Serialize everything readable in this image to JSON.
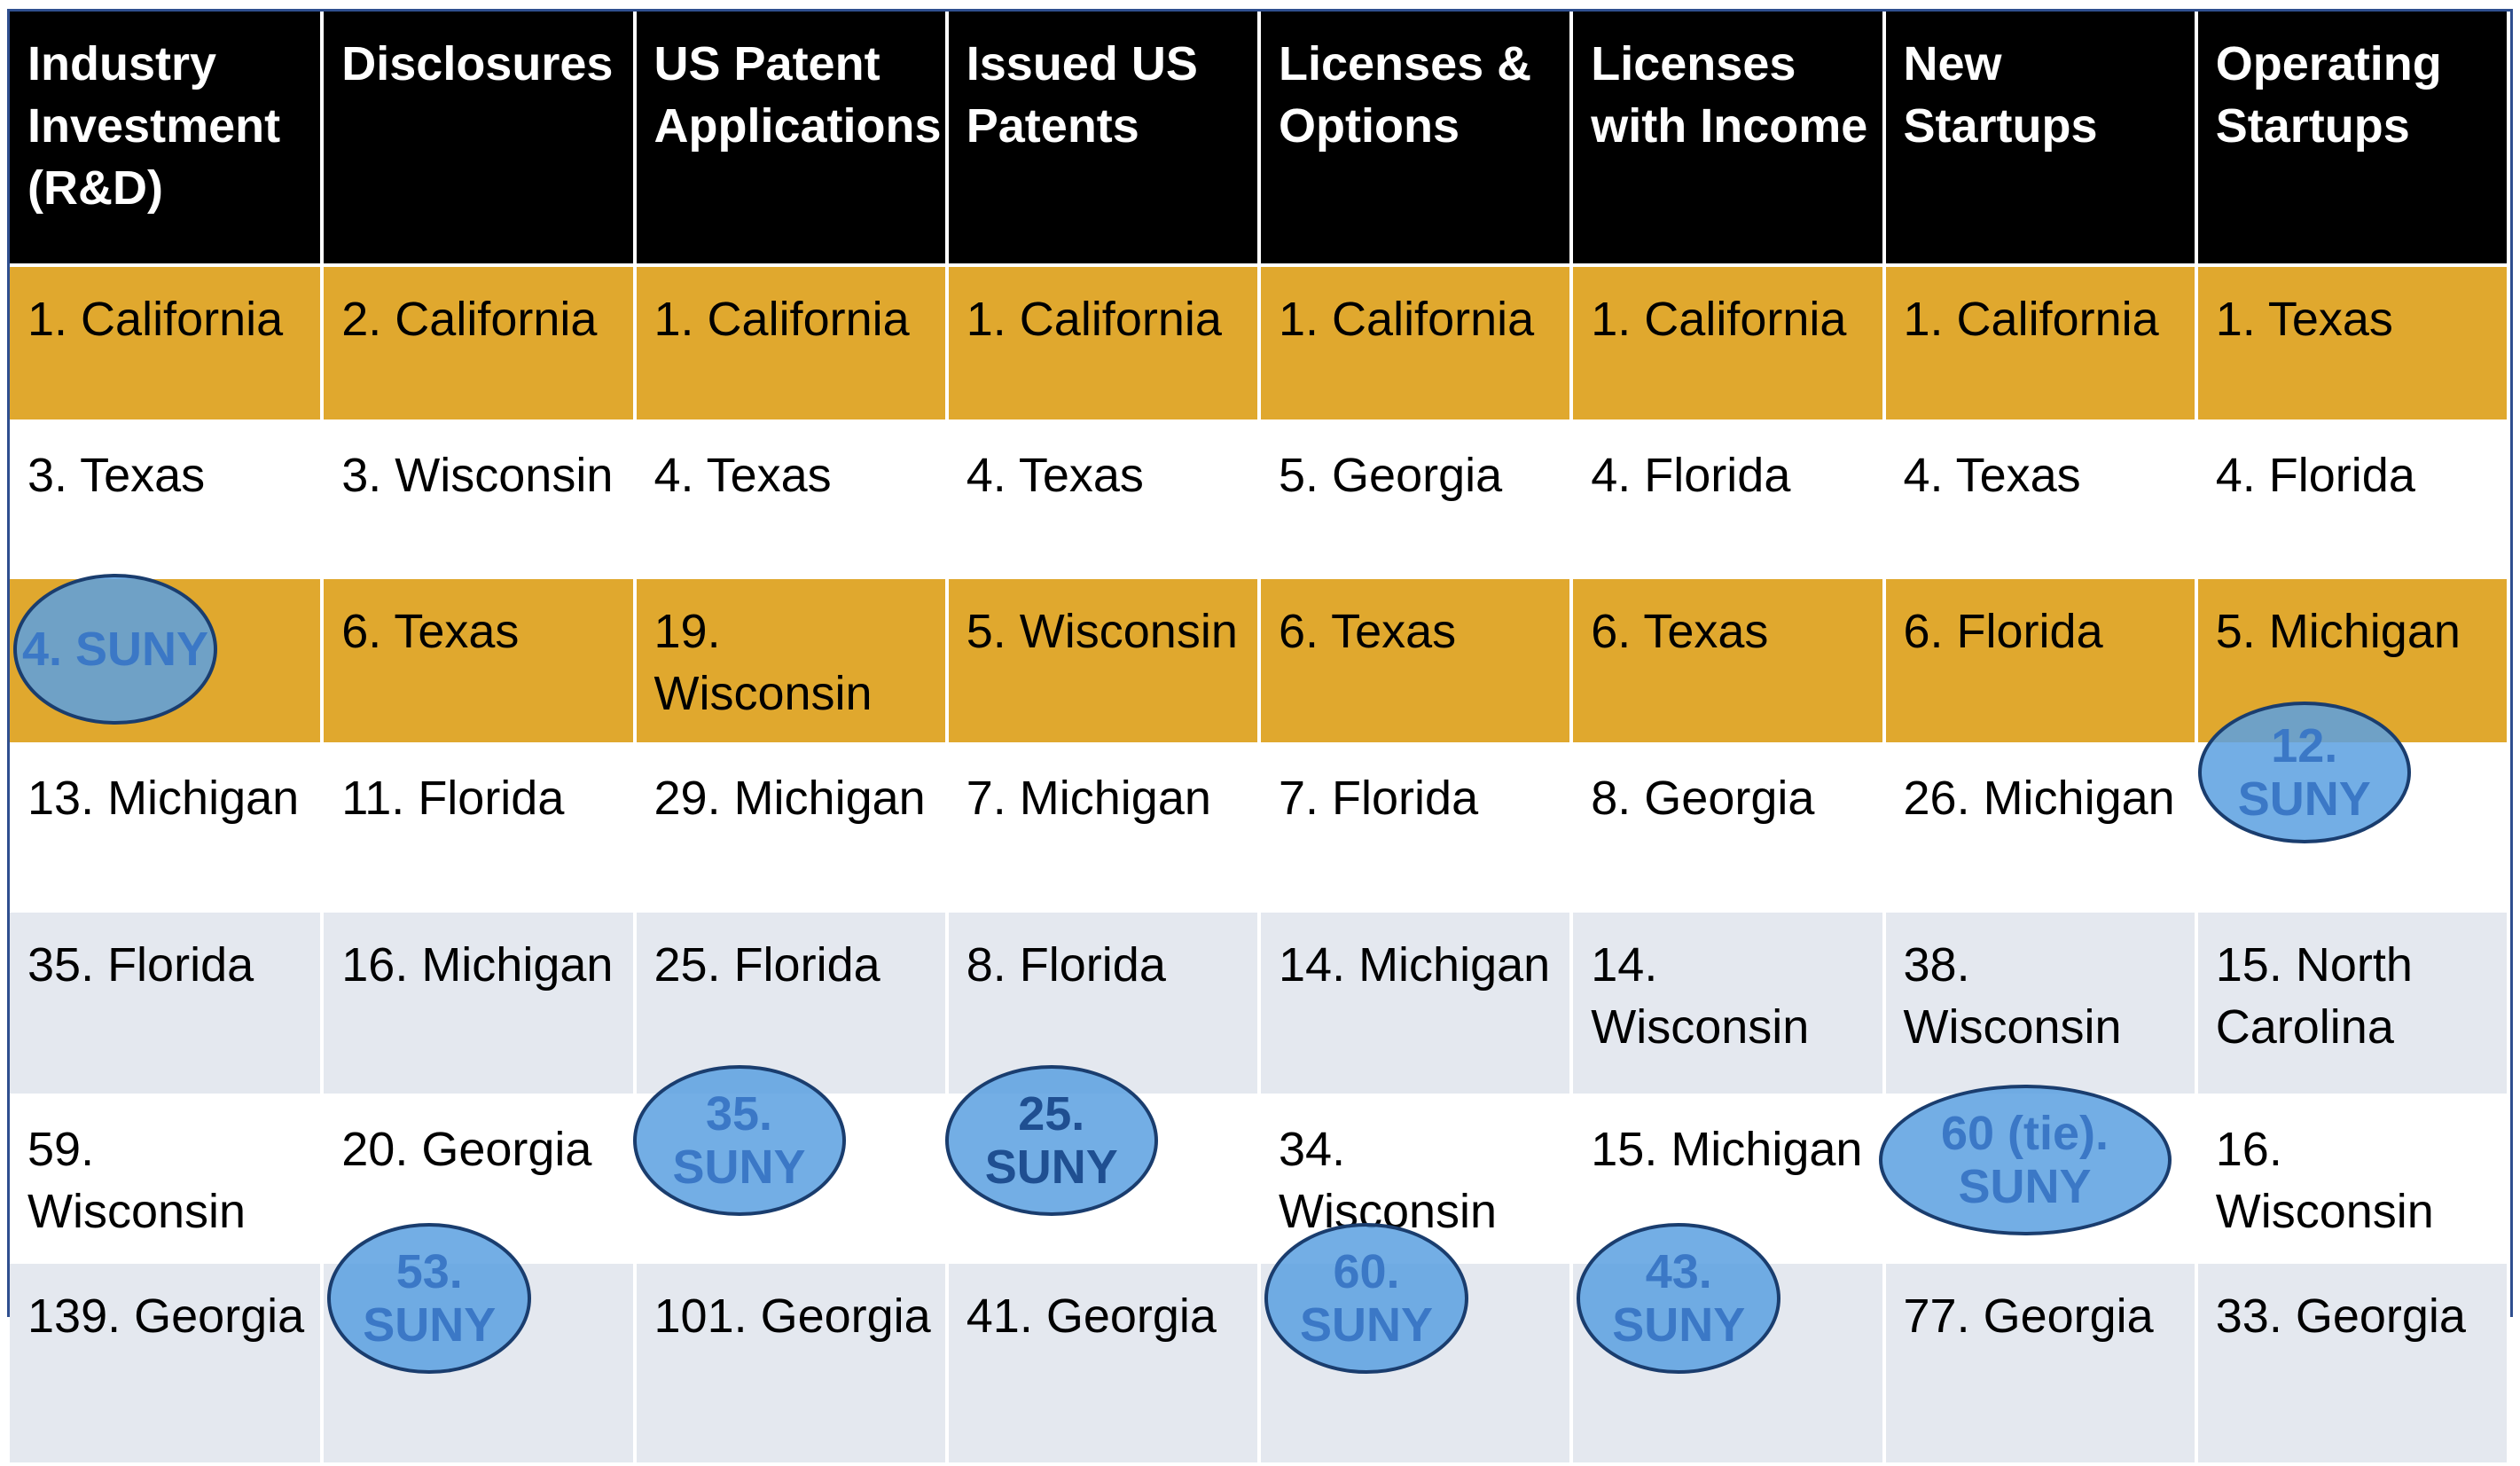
{
  "headers": [
    {
      "label": "Industry Investment (R&D)"
    },
    {
      "label": "Disclosures"
    },
    {
      "label": "US Patent Applications"
    },
    {
      "label": "Issued US Patents"
    },
    {
      "label": "Licenses & Options"
    },
    {
      "label": "Licenses with Income"
    },
    {
      "label": "New Startups"
    },
    {
      "label": "Operating Startups"
    }
  ],
  "rows": [
    [
      "1. California",
      "2. California",
      "1. California",
      "1. California",
      "1. California",
      "1. California",
      "1. California",
      "1. Texas"
    ],
    [
      "3. Texas",
      "3. Wisconsin",
      "4. Texas",
      "4. Texas",
      "5. Georgia",
      "4. Florida",
      "4. Texas",
      "4. Florida"
    ],
    [
      "4. SUNY",
      "6. Texas",
      "19. Wisconsin",
      "5. Wisconsin",
      "6. Texas",
      "6. Texas",
      "6. Florida",
      "5. Michigan"
    ],
    [
      "13. Michigan",
      "11. Florida",
      "29. Michigan",
      "7. Michigan",
      "7. Florida",
      "8. Georgia",
      "26. Michigan",
      "12. SUNY"
    ],
    [
      "35. Florida",
      "16. Michigan",
      "25. Florida",
      "8. Florida",
      "14. Michigan",
      "14. Wisconsin",
      "38. Wisconsin",
      "15. North Carolina"
    ],
    [
      "59. Wisconsin",
      "20. Georgia",
      "35. SUNY",
      "25. SUNY",
      "34. Wisconsin",
      "15. Michigan",
      "60 (tie). SUNY",
      "16. Wisconsin"
    ],
    [
      "139. Georgia",
      "53. SUNY",
      "101. Georgia",
      "41. Georgia",
      "60. SUNY",
      "43. SUNY",
      "77. Georgia",
      "33. Georgia"
    ]
  ],
  "colors": {
    "header_bg": "#000000",
    "gold_row": "#e0a82e",
    "grey_row": "#e4e8ef",
    "suny_highlight": "#5aa0e1"
  }
}
